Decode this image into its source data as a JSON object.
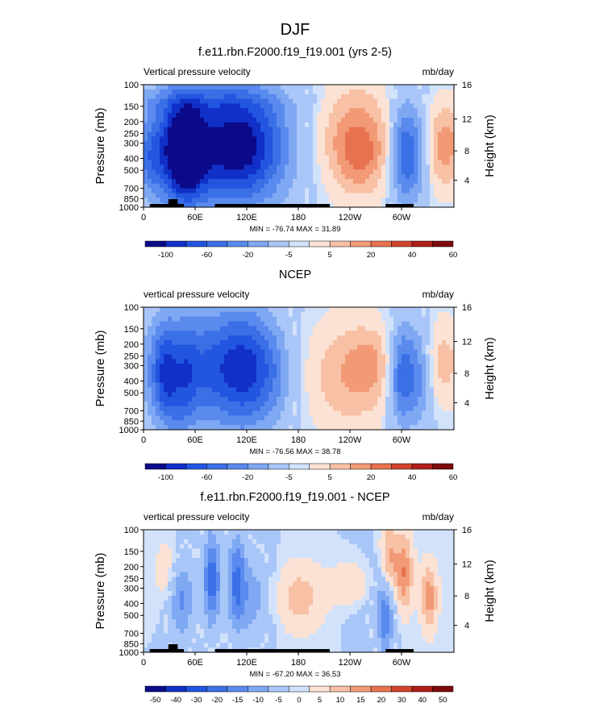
{
  "figure_title": "DJF",
  "chart_data": [
    {
      "type": "heatmap",
      "title": "f.e11.rbn.F2000.f19_f19.001 (yrs 2-5)",
      "left_label": "Vertical pressure velocity",
      "right_label": "mb/day",
      "ylabel": "Pressure (mb)",
      "ylabel_right": "Height (km)",
      "x_ticks": [
        "0",
        "60E",
        "120E",
        "180",
        "120W",
        "60W"
      ],
      "y_ticks": [
        "100",
        "150",
        "200",
        "250",
        "300",
        "400",
        "500",
        "700",
        "850",
        "1000"
      ],
      "y_ticks_right": [
        "16",
        "12",
        "8",
        "4"
      ],
      "stats": "MIN = -76.74  MAX = 31.89",
      "colorbar_labels": [
        "-100",
        "-60",
        "-20",
        "-5",
        "5",
        "20",
        "40",
        "60"
      ],
      "colorbar_colors": [
        "#0b0b8a",
        "#1030c8",
        "#2255e0",
        "#3a6fe6",
        "#5a8aee",
        "#7fa8f3",
        "#a9c6f8",
        "#d2e2fb",
        "#fbe2d4",
        "#f8c1a5",
        "#f29a76",
        "#e8724f",
        "#d2432c",
        "#b01e18",
        "#7f0a0a"
      ]
    },
    {
      "type": "heatmap",
      "title": "NCEP",
      "left_label": "vertical pressure velocity",
      "right_label": "mb/day",
      "ylabel": "Pressure (mb)",
      "ylabel_right": "Height (km)",
      "x_ticks": [
        "0",
        "60E",
        "120E",
        "180",
        "120W",
        "60W"
      ],
      "y_ticks": [
        "100",
        "150",
        "200",
        "250",
        "300",
        "400",
        "500",
        "700",
        "850",
        "1000"
      ],
      "y_ticks_right": [
        "16",
        "12",
        "8",
        "4"
      ],
      "stats": "MIN = -76.56  MAX = 38.78",
      "colorbar_labels": [
        "-100",
        "-60",
        "-20",
        "-5",
        "5",
        "20",
        "40",
        "60"
      ],
      "colorbar_colors": [
        "#0b0b8a",
        "#1030c8",
        "#2255e0",
        "#3a6fe6",
        "#5a8aee",
        "#7fa8f3",
        "#a9c6f8",
        "#d2e2fb",
        "#fbe2d4",
        "#f8c1a5",
        "#f29a76",
        "#e8724f",
        "#d2432c",
        "#b01e18",
        "#7f0a0a"
      ]
    },
    {
      "type": "heatmap",
      "title": "f.e11.rbn.F2000.f19_f19.001 - NCEP",
      "left_label": "vertical pressure velocity",
      "right_label": "mb/day",
      "ylabel": "Pressure (mb)",
      "ylabel_right": "Height (km)",
      "x_ticks": [
        "0",
        "60E",
        "120E",
        "180",
        "120W",
        "60W"
      ],
      "y_ticks": [
        "100",
        "150",
        "200",
        "250",
        "300",
        "400",
        "500",
        "700",
        "850",
        "1000"
      ],
      "y_ticks_right": [
        "16",
        "12",
        "8",
        "4"
      ],
      "stats": "MIN = -67.20  MAX = 36.53",
      "colorbar_labels": [
        "-50",
        "-40",
        "-30",
        "-20",
        "-15",
        "-10",
        "-5",
        "0",
        "5",
        "10",
        "15",
        "20",
        "30",
        "40",
        "50"
      ],
      "colorbar_colors": [
        "#0b0b8a",
        "#1030c8",
        "#2255e0",
        "#3a6fe6",
        "#5a8aee",
        "#7fa8f3",
        "#a9c6f8",
        "#d2e2fb",
        "#fbe2d4",
        "#f8c1a5",
        "#f29a76",
        "#e8724f",
        "#d2432c",
        "#b01e18",
        "#7f0a0a"
      ]
    }
  ]
}
